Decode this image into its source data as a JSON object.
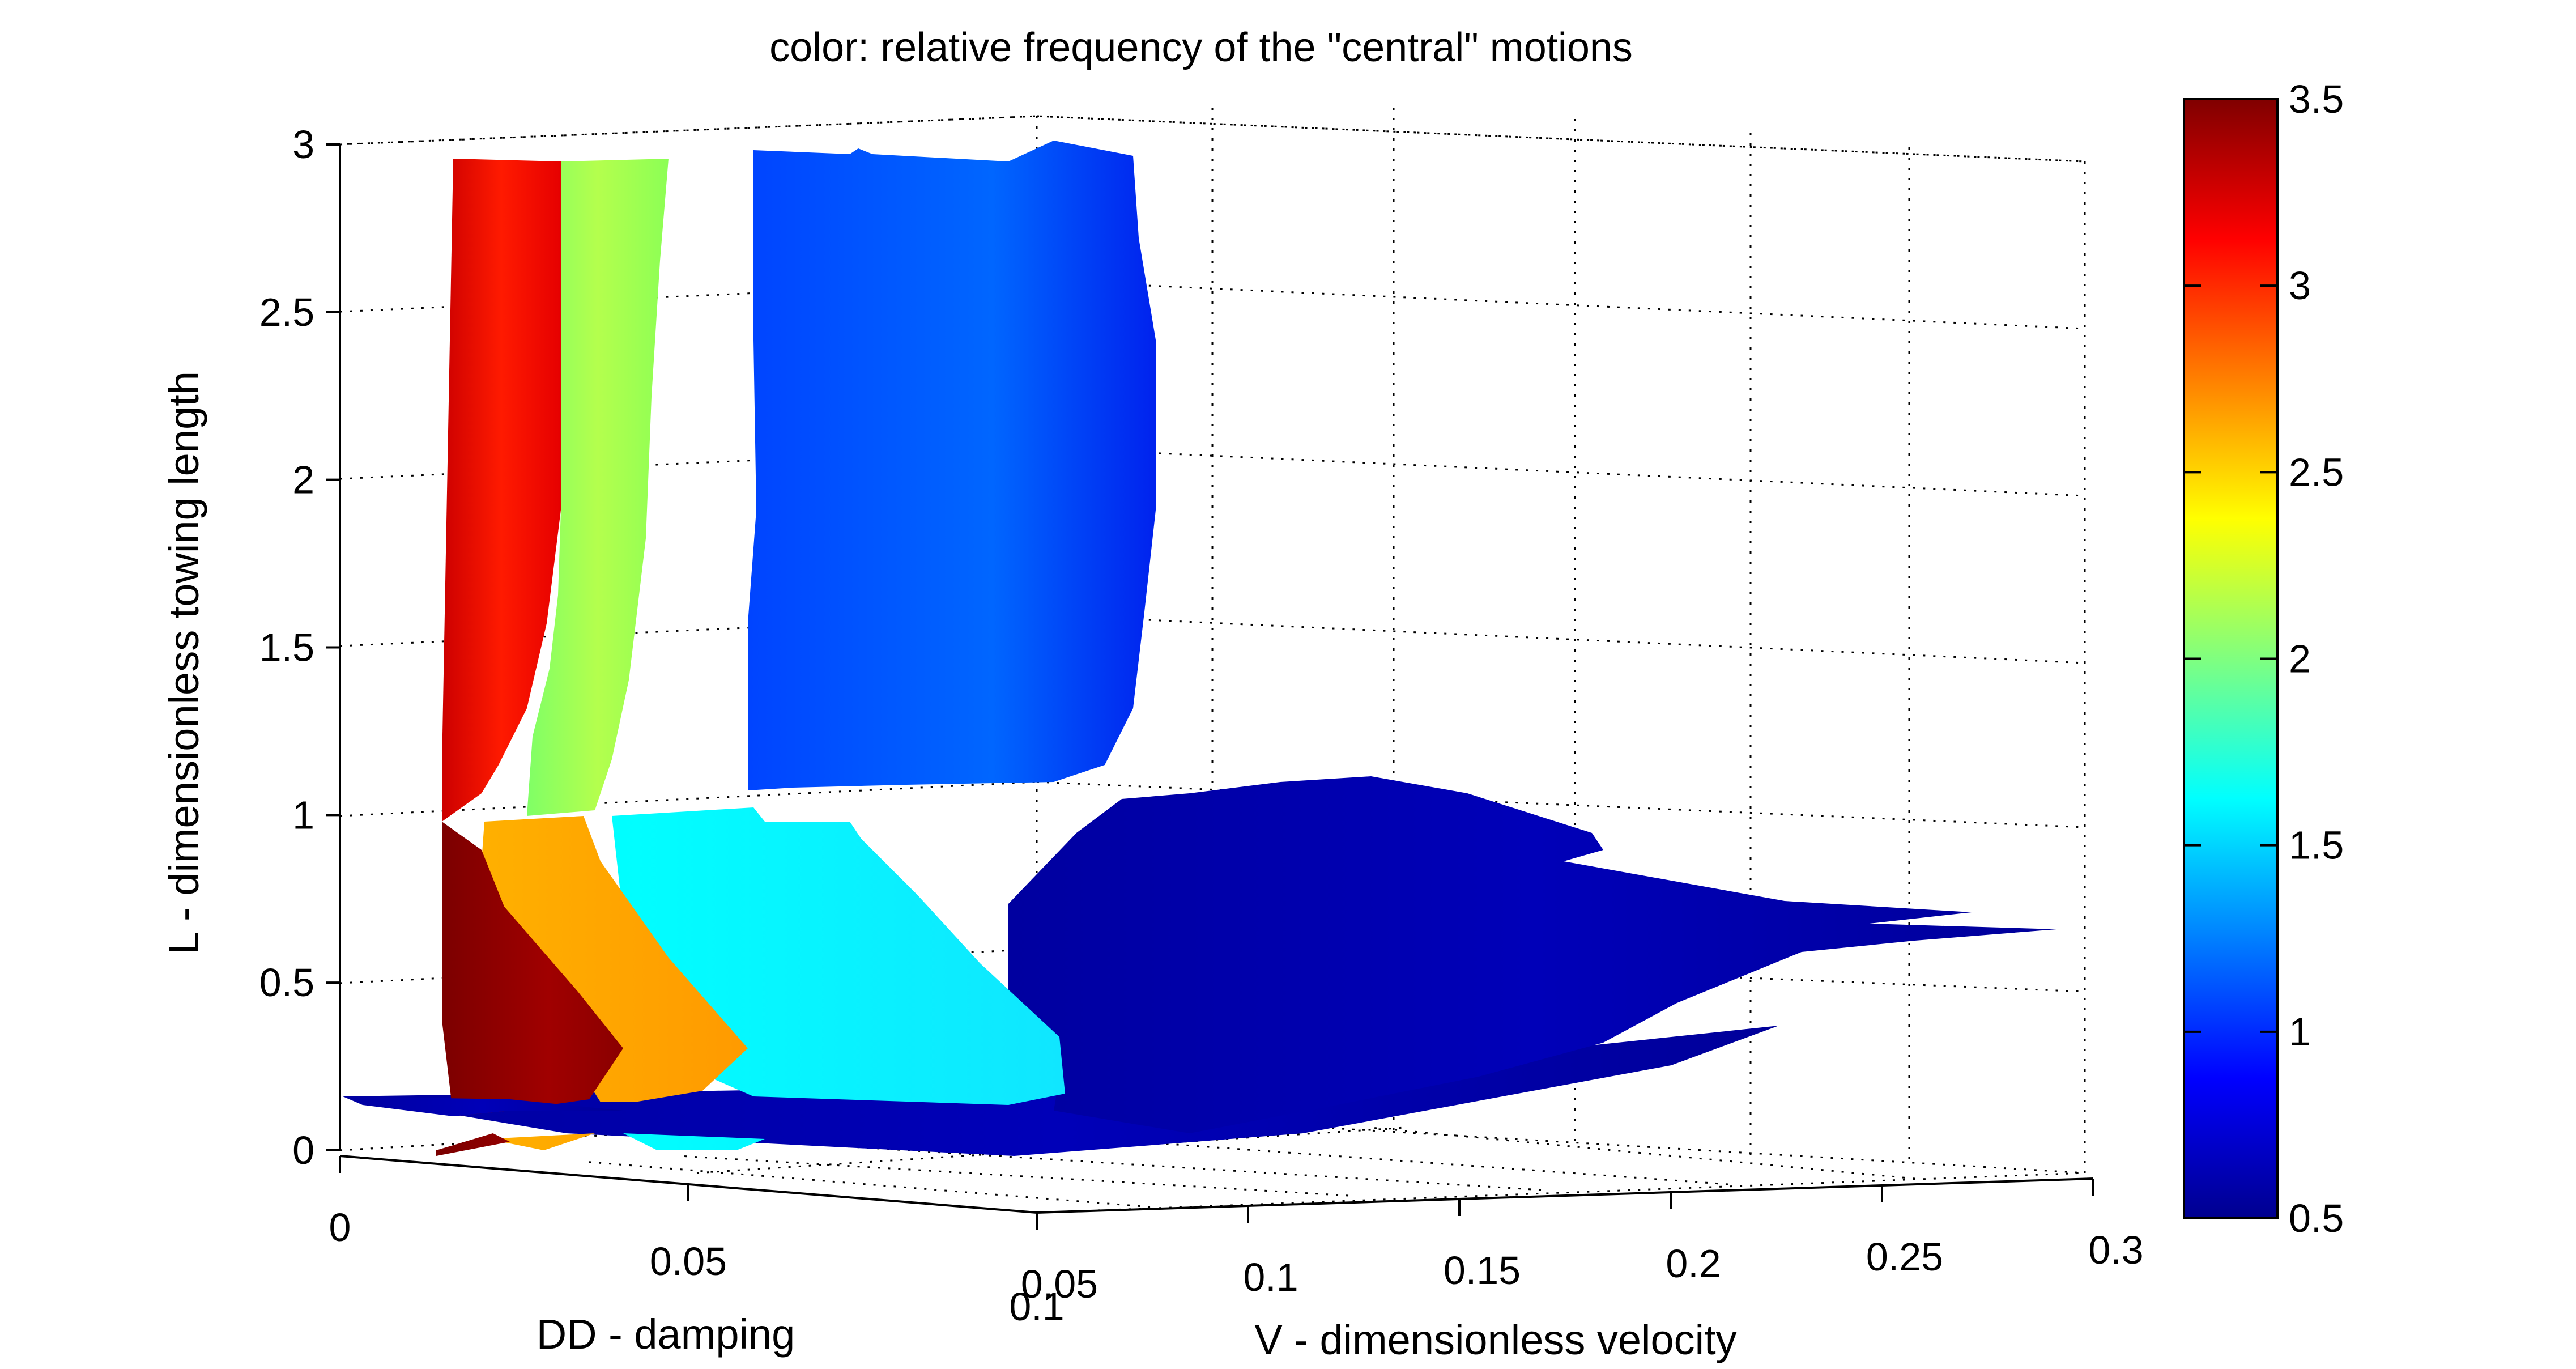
{
  "chart_data": {
    "type": "surface3d",
    "title": "color: relative frequency of the \"central\" motions",
    "xlabel": "DD - damping",
    "ylabel": "V - dimensionless velocity",
    "zlabel": "L - dimensionless towing length",
    "xlim": [
      0,
      0.1
    ],
    "ylim": [
      0.05,
      0.3
    ],
    "zlim": [
      0,
      3
    ],
    "clim": [
      0.5,
      3.5
    ],
    "colormap": "jet",
    "grid": true,
    "x_tick_labels": [
      "0",
      "0.05",
      "0.1"
    ],
    "y_tick_labels": [
      "0.05",
      "0.1",
      "0.15",
      "0.2",
      "0.25",
      "0.3"
    ],
    "z_tick_labels": [
      "0",
      "0.5",
      "1",
      "1.5",
      "2",
      "2.5",
      "3"
    ],
    "colorbar_tick_labels": [
      "0.5",
      "1",
      "1.5",
      "2",
      "2.5",
      "3",
      "3.5"
    ],
    "colorbar_ticks": [
      0.5,
      1,
      1.5,
      2,
      2.5,
      3,
      3.5
    ],
    "regions": [
      {
        "name": "high-L band, frequency 3",
        "value": 3.0,
        "L_range": [
          1.0,
          2.95
        ]
      },
      {
        "name": "high-L band, frequency 2",
        "value": 2.0,
        "L_range": [
          1.0,
          2.95
        ]
      },
      {
        "name": "high-L band, frequency 1",
        "value": 1.0,
        "L_range": [
          1.0,
          2.95
        ]
      },
      {
        "name": "low-L band, frequency 3.5",
        "value": 3.5,
        "L_range": [
          0.0,
          1.0
        ]
      },
      {
        "name": "low-L band, frequency 2.5",
        "value": 2.5,
        "L_range": [
          0.0,
          1.0
        ]
      },
      {
        "name": "low-L band, frequency 1.5",
        "value": 1.5,
        "L_range": [
          0.0,
          1.0
        ]
      },
      {
        "name": "low-L band, frequency 0.5",
        "value": 0.5,
        "L_range": [
          0.0,
          1.0
        ]
      }
    ]
  }
}
